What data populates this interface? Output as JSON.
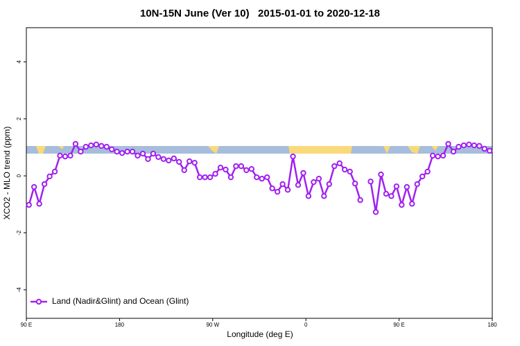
{
  "chart_data": {
    "type": "line",
    "title": "10N-15N June (Ver 10)   2015-01-01 to 2020-12-18",
    "x_label": "Longitude (deg E)",
    "y_label": "XCO2 - MLO trend (ppm)",
    "xlim": [
      90,
      540
    ],
    "ylim": [
      -5.0,
      5.2
    ],
    "xticks": [
      {
        "value": 90,
        "label": "90 E"
      },
      {
        "value": 180,
        "label": "180"
      },
      {
        "value": 270,
        "label": "90 W"
      },
      {
        "value": 360,
        "label": "0"
      },
      {
        "value": 450,
        "label": "90 E"
      },
      {
        "value": 540,
        "label": "180"
      }
    ],
    "yticks": [
      -4,
      -2,
      0,
      2,
      4
    ],
    "legend": "bottom-left",
    "x": [
      92.5,
      97.5,
      102.5,
      107.5,
      112.5,
      117.5,
      122.5,
      127.5,
      132.5,
      137.5,
      142.5,
      147.5,
      152.5,
      157.5,
      162.5,
      167.5,
      172.5,
      177.5,
      182.5,
      187.5,
      192.5,
      197.5,
      202.5,
      207.5,
      212.5,
      217.5,
      222.5,
      227.5,
      232.5,
      237.5,
      242.5,
      247.5,
      252.5,
      257.5,
      262.5,
      267.5,
      272.5,
      277.5,
      282.5,
      287.5,
      292.5,
      297.5,
      302.5,
      307.5,
      312.5,
      317.5,
      322.5,
      327.5,
      332.5,
      337.5,
      342.5,
      347.5,
      352.5,
      357.5,
      362.5,
      367.5,
      372.5,
      377.5,
      382.5,
      387.5,
      392.5,
      397.5,
      402.5,
      407.5,
      412.5,
      417.5,
      422.5,
      427.5,
      432.5,
      437.5,
      442.5,
      447.5,
      452.5,
      457.5,
      462.5,
      467.5,
      472.5,
      477.5,
      482.5,
      487.5,
      492.5,
      497.5,
      502.5,
      507.5,
      512.5,
      517.5,
      522.5,
      527.5,
      532.5,
      537.5
    ],
    "series": [
      {
        "name": "Land (Nadir&Glint) and Ocean (Glint)",
        "color": "#a020f0",
        "values": [
          -1.02,
          -0.39,
          -0.98,
          -0.29,
          -0.02,
          0.15,
          0.71,
          0.68,
          0.71,
          1.12,
          0.85,
          1.02,
          1.07,
          1.1,
          1.05,
          1.02,
          0.93,
          0.85,
          0.8,
          0.85,
          0.85,
          0.71,
          0.78,
          0.59,
          0.78,
          0.66,
          0.59,
          0.54,
          0.61,
          0.49,
          0.2,
          0.51,
          0.46,
          -0.05,
          -0.05,
          -0.05,
          0.07,
          0.29,
          0.22,
          -0.05,
          0.34,
          0.34,
          0.2,
          0.24,
          -0.05,
          -0.1,
          -0.05,
          -0.44,
          -0.56,
          -0.29,
          -0.49,
          0.68,
          -0.32,
          0.1,
          -0.71,
          -0.22,
          -0.1,
          -0.71,
          -0.29,
          0.34,
          0.44,
          0.22,
          0.15,
          -0.27,
          -0.85,
          null,
          -0.2,
          -1.27,
          0.05,
          -0.63,
          -0.71,
          -0.37,
          -1.02,
          -0.39,
          -0.98,
          -0.29,
          -0.02,
          0.15,
          0.71,
          0.68,
          0.71,
          1.12,
          0.85,
          1.02,
          1.07,
          1.1,
          1.07,
          1.05,
          0.95,
          0.88
        ]
      }
    ]
  }
}
